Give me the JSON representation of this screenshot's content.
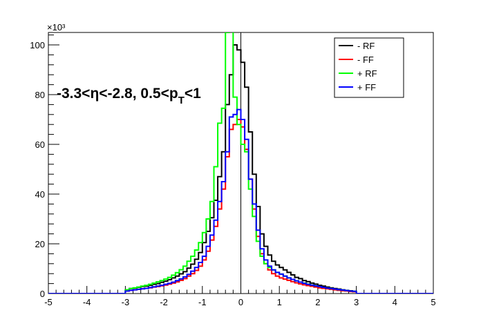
{
  "chart_data": {
    "type": "line",
    "xlim": [
      -5,
      5
    ],
    "ylim": [
      0,
      105
    ],
    "y_multiplier_label": "×10³",
    "x_ticks": [
      -5,
      -4,
      -3,
      -2,
      -1,
      0,
      1,
      2,
      3,
      4,
      5
    ],
    "y_ticks": [
      0,
      20,
      40,
      60,
      80,
      100
    ],
    "annotation": "-3.3<η<-2.8, 0.5<p_T<1",
    "annotation_parts": {
      "main": "-3.3<η<-2.8, 0.5<p",
      "sub": "T",
      "tail": "<1"
    },
    "legend_position": "top-right",
    "bin_edges": [
      -3.0,
      -2.9,
      -2.8,
      -2.7,
      -2.6,
      -2.5,
      -2.4,
      -2.3,
      -2.2,
      -2.1,
      -2.0,
      -1.9,
      -1.8,
      -1.7,
      -1.6,
      -1.5,
      -1.4,
      -1.3,
      -1.2,
      -1.1,
      -1.0,
      -0.9,
      -0.8,
      -0.7,
      -0.6,
      -0.5,
      -0.4,
      -0.3,
      -0.2,
      -0.1,
      0.0,
      0.1,
      0.2,
      0.3,
      0.4,
      0.5,
      0.6,
      0.7,
      0.8,
      0.9,
      1.0,
      1.1,
      1.2,
      1.3,
      1.4,
      1.5,
      1.6,
      1.7,
      1.8,
      1.9,
      2.0,
      2.1,
      2.2,
      2.3,
      2.4,
      2.5,
      2.6,
      2.7,
      2.8,
      2.9,
      3.0
    ],
    "series": [
      {
        "name": "- RF",
        "color": "#000000",
        "values": [
          1.5,
          2.0,
          2.2,
          2.5,
          2.8,
          3.0,
          3.3,
          3.7,
          4.0,
          4.5,
          5.0,
          5.6,
          6.3,
          7.0,
          7.9,
          8.8,
          10.2,
          11.8,
          13.8,
          16.5,
          20.5,
          25.0,
          30.5,
          37.5,
          47.0,
          57.0,
          76.0,
          88.0,
          100.0,
          98.0,
          93.0,
          83.0,
          65.0,
          48.0,
          35.0,
          24.0,
          19.0,
          15.5,
          13.0,
          11.5,
          10.5,
          9.5,
          8.5,
          7.5,
          6.5,
          6.0,
          5.2,
          4.8,
          4.2,
          3.8,
          3.3,
          3.0,
          2.6,
          2.3,
          2.0,
          1.8,
          1.5,
          1.3,
          1.1,
          0.9
        ]
      },
      {
        "name": "- FF",
        "color": "#ff0000",
        "values": [
          1.0,
          1.3,
          1.5,
          1.7,
          1.9,
          2.1,
          2.3,
          2.6,
          2.8,
          3.1,
          3.4,
          3.8,
          4.2,
          4.7,
          5.3,
          6.0,
          7.0,
          8.0,
          9.3,
          11.0,
          13.5,
          17.0,
          21.5,
          27.0,
          34.0,
          42.0,
          55.0,
          66.0,
          68.0,
          70.0,
          67.0,
          58.0,
          46.0,
          34.0,
          23.0,
          16.0,
          12.0,
          9.5,
          8.0,
          7.0,
          6.3,
          5.8,
          5.3,
          4.8,
          4.3,
          3.9,
          3.5,
          3.2,
          2.9,
          2.6,
          2.3,
          2.1,
          1.9,
          1.7,
          1.5,
          1.3,
          1.1,
          1.0,
          0.8,
          0.7
        ]
      },
      {
        "name": "+ RF",
        "color": "#00ff00",
        "values": [
          1.5,
          2.0,
          2.3,
          2.6,
          3.0,
          3.3,
          3.7,
          4.2,
          4.7,
          5.2,
          5.8,
          6.5,
          7.4,
          8.4,
          9.6,
          11.0,
          13.0,
          15.0,
          17.5,
          20.5,
          24.5,
          30.0,
          37.0,
          51.0,
          68.5,
          74.5,
          105.0,
          110.0,
          79.0,
          68.0,
          60.0,
          57.0,
          42.0,
          31.0,
          21.0,
          15.0,
          12.0,
          10.5,
          9.5,
          8.5,
          7.8,
          7.0,
          6.3,
          5.7,
          5.1,
          4.6,
          4.2,
          3.8,
          3.4,
          3.1,
          2.8,
          2.5,
          2.2,
          2.0,
          1.8,
          1.6,
          1.4,
          1.2,
          1.0,
          0.9
        ]
      },
      {
        "name": "+ FF",
        "color": "#0000ff",
        "values": [
          1.0,
          1.3,
          1.5,
          1.7,
          1.9,
          2.1,
          2.4,
          2.7,
          3.0,
          3.3,
          3.7,
          4.1,
          4.6,
          5.2,
          5.9,
          6.7,
          7.7,
          9.0,
          10.5,
          12.5,
          15.0,
          19.0,
          23.5,
          29.5,
          37.0,
          45.0,
          57.0,
          71.0,
          72.0,
          74.0,
          70.0,
          62.0,
          46.0,
          36.0,
          25.5,
          18.0,
          13.5,
          11.0,
          9.5,
          8.5,
          7.8,
          7.0,
          6.3,
          5.7,
          5.1,
          4.6,
          4.1,
          3.7,
          3.4,
          3.1,
          2.8,
          2.5,
          2.2,
          2.0,
          1.8,
          1.6,
          1.4,
          1.2,
          1.0,
          0.9
        ]
      }
    ]
  }
}
